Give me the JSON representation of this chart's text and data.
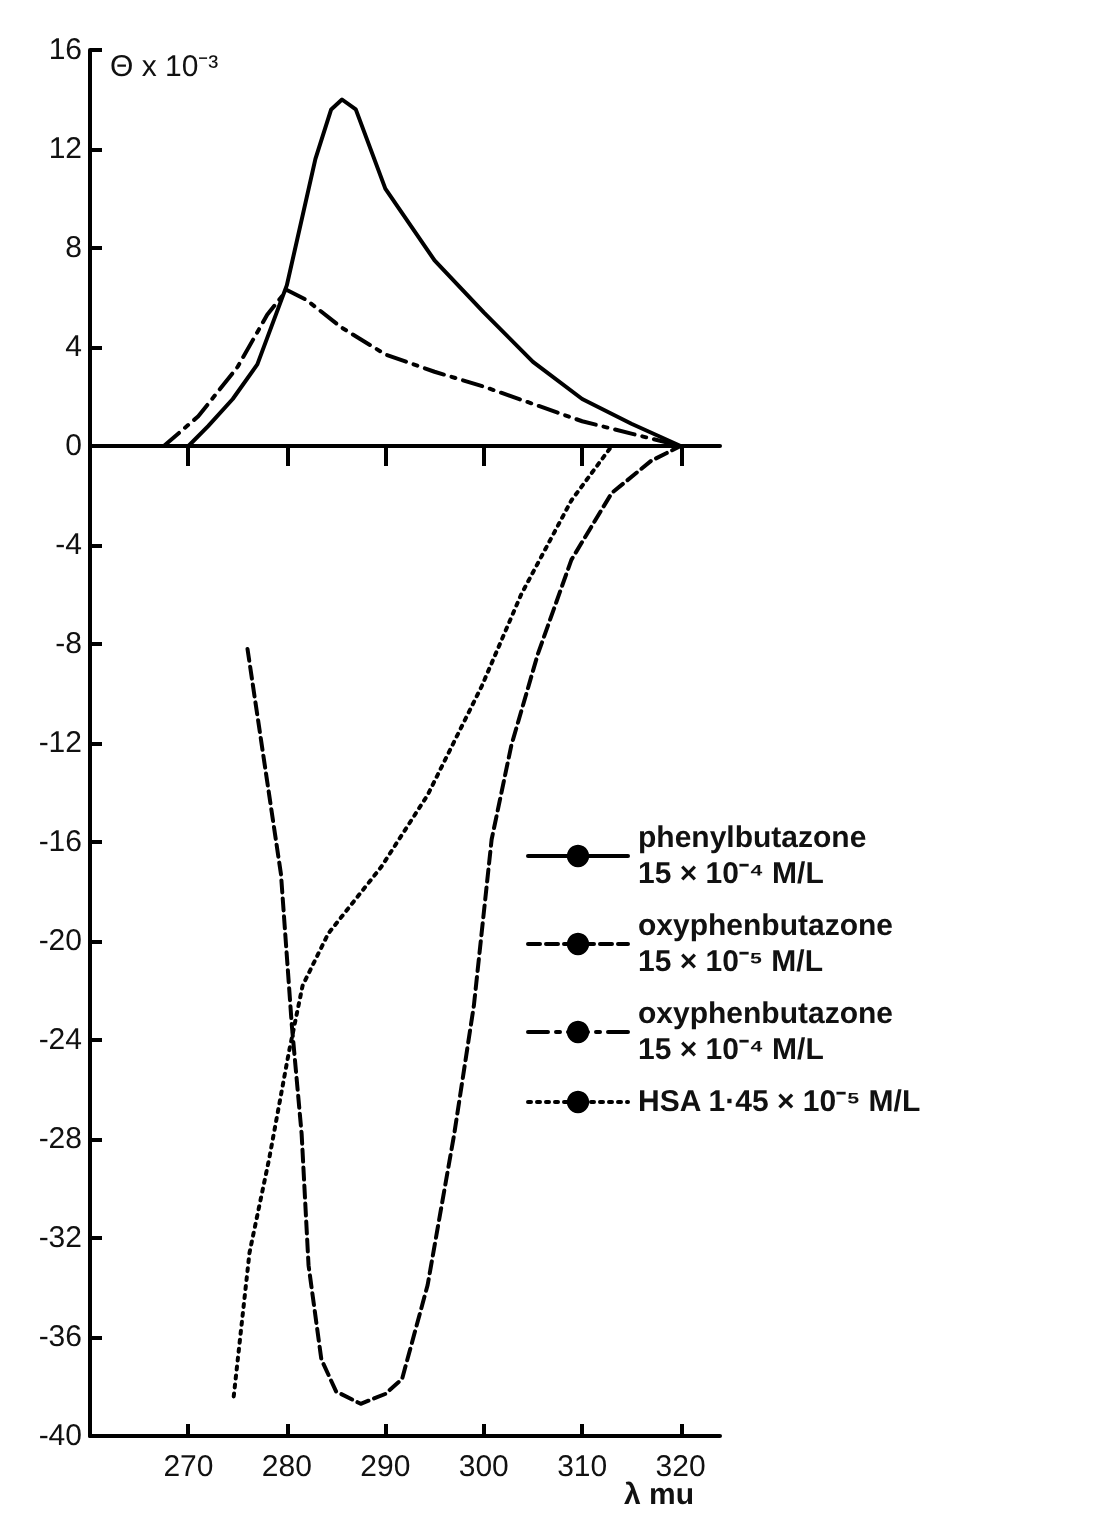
{
  "chart_data": {
    "type": "line",
    "xlabel": "λ mu",
    "ylabel": "Θ x 10⁻³",
    "xlim": [
      260,
      324
    ],
    "xticks": [
      270,
      280,
      290,
      300,
      310,
      320
    ],
    "ylim": [
      -40,
      16
    ],
    "yticks": [
      -40,
      -36,
      -32,
      -28,
      -24,
      -20,
      -16,
      -12,
      -8,
      -4,
      0,
      4,
      8,
      12,
      16
    ],
    "grid": false,
    "legend": "right",
    "marker": "none",
    "ref_lines": [
      {
        "axis": "y",
        "value": 0
      }
    ],
    "series": [
      {
        "name": "phenylbutazone\n15 × 10⁻⁴ M/L",
        "color": "#000000",
        "line_style": "solid",
        "x": [
          270,
          272,
          274.5,
          277,
          280,
          282.9,
          284.5,
          285.6,
          287,
          290,
          295,
          300,
          305,
          310,
          315,
          320
        ],
        "values": [
          0,
          0.8,
          1.9,
          3.3,
          6.5,
          11.6,
          13.6,
          14,
          13.6,
          10.4,
          7.5,
          5.4,
          3.4,
          1.9,
          0.9,
          0
        ]
      },
      {
        "name": "oxyphenbutazone\n15 × 10⁻⁵ M/L",
        "color": "#000000",
        "line_style": "dashed",
        "x": [
          276,
          279.4,
          280.5,
          281.5,
          282.2,
          283.5,
          285,
          287.5,
          290,
          291.7,
          294.3,
          297,
          299,
          300.8,
          302.8,
          305.5,
          308.9,
          313,
          317,
          320
        ],
        "values": [
          -8.2,
          -17.3,
          -23.4,
          -27.8,
          -33.1,
          -36.9,
          -38.2,
          -38.7,
          -38.3,
          -37.7,
          -33.9,
          -27.8,
          -22.6,
          -15.9,
          -12.1,
          -8.4,
          -4.6,
          -1.9,
          -0.6,
          0
        ]
      },
      {
        "name": "oxyphenbutazone\n15 × 10⁻⁴ M/L",
        "color": "#000000",
        "line_style": "dashdot",
        "x": [
          267.5,
          271,
          275,
          278,
          280,
          282,
          285.5,
          290,
          295,
          300,
          305,
          310,
          315,
          320
        ],
        "values": [
          0,
          1.2,
          3.2,
          5.3,
          6.3,
          5.9,
          4.8,
          3.7,
          3,
          2.4,
          1.7,
          1,
          0.5,
          0
        ]
      },
      {
        "name": "HSA 1·45 × 10⁻⁵ M/L",
        "color": "#000000",
        "line_style": "dotted",
        "x": [
          274.6,
          276.2,
          278.2,
          280.2,
          281.6,
          284.2,
          289.6,
          294.3,
          299.8,
          303.8,
          308.9,
          313
        ],
        "values": [
          -38.4,
          -32.6,
          -28.8,
          -24.5,
          -21.8,
          -19.7,
          -17,
          -14.1,
          -9.7,
          -6,
          -2.2,
          0
        ]
      }
    ]
  }
}
